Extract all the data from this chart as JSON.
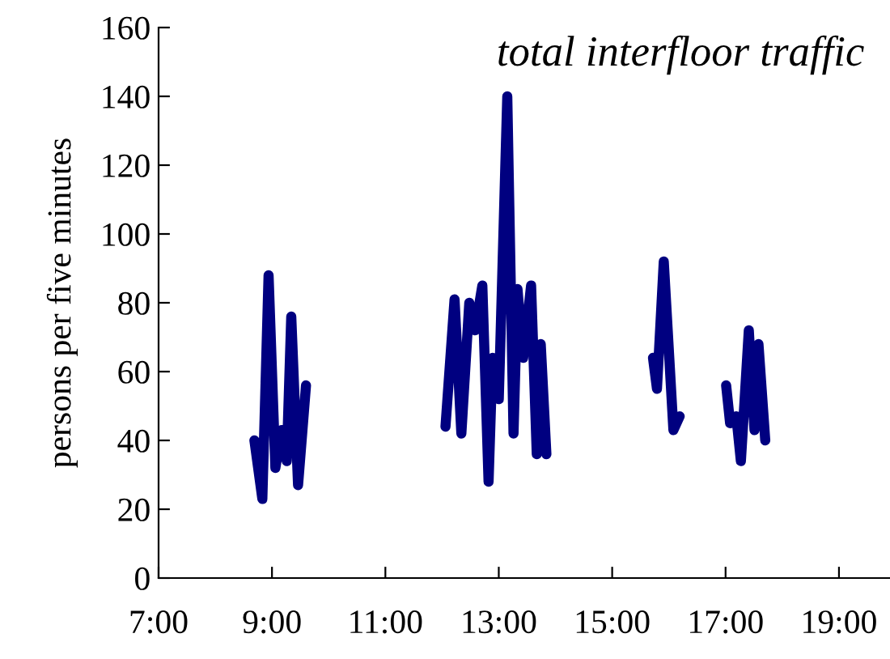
{
  "chart_data": {
    "type": "line",
    "title": "total interfloor traffic",
    "ylabel": "persons per five minutes",
    "x": [
      8.69,
      8.83,
      8.94,
      9.06,
      9.17,
      9.26,
      9.34,
      9.46,
      9.6,
      10.8,
      12.06,
      12.22,
      12.34,
      12.48,
      12.58,
      12.71,
      12.82,
      12.89,
      13.0,
      13.15,
      13.26,
      13.33,
      13.43,
      13.57,
      13.67,
      13.74,
      13.84,
      14.8,
      15.72,
      15.79,
      15.91,
      16.08,
      16.19,
      16.6,
      17.01,
      17.08,
      17.19,
      17.27,
      17.41,
      17.51,
      17.58,
      17.7
    ],
    "series": [
      {
        "color": "#000080",
        "values": [
          40,
          23,
          88,
          32,
          43,
          34,
          76,
          27,
          56,
          null,
          44,
          81,
          42,
          80,
          72,
          85,
          28,
          64,
          52,
          140,
          42,
          84,
          64,
          85,
          36,
          68,
          36,
          null,
          64,
          55,
          92,
          43,
          47,
          null,
          56,
          45,
          47,
          34,
          72,
          43,
          68,
          40
        ]
      }
    ],
    "xlim": [
      7,
      19.9
    ],
    "xticks": [
      {
        "value": 7,
        "label": "7:00"
      },
      {
        "value": 9,
        "label": "9:00"
      },
      {
        "value": 11,
        "label": "11:00"
      },
      {
        "value": 13,
        "label": "13:00"
      },
      {
        "value": 15,
        "label": "15:00"
      },
      {
        "value": 17,
        "label": "17:00"
      },
      {
        "value": 19,
        "label": "19:00"
      }
    ],
    "ylim": [
      0,
      160
    ],
    "yticks": [
      0,
      20,
      40,
      60,
      80,
      100,
      120,
      140,
      160
    ],
    "grid": false,
    "marker": "none",
    "line_style": "solid"
  }
}
